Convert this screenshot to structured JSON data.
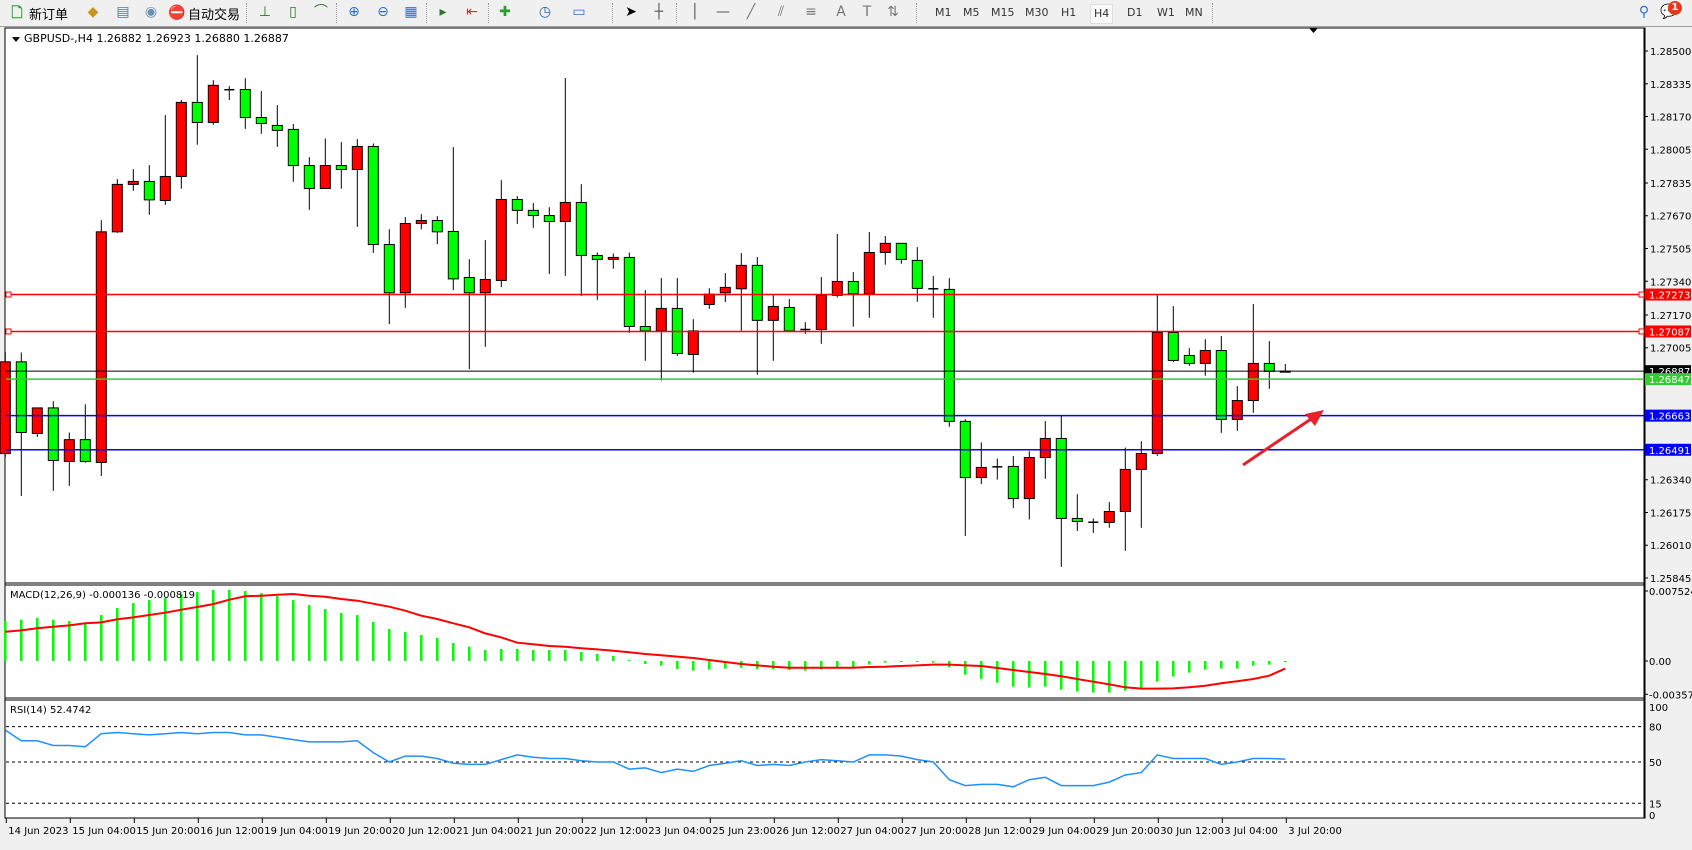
{
  "toolbar": {
    "new_order_label": "新订单",
    "auto_trading_label": "自动交易",
    "icons": [
      "new-order-icon",
      "market-watch-icon",
      "data-window-icon",
      "signals-icon",
      "auto-trading-icon",
      "bar-chart-icon",
      "candlestick-icon",
      "line-chart-icon",
      "zoom-in-icon",
      "zoom-out-icon",
      "tile-windows-icon",
      "autoscroll-icon",
      "chart-shift-icon",
      "indicators-icon",
      "periods-icon",
      "templates-icon",
      "cursor-icon",
      "crosshair-icon",
      "vertical-line-icon",
      "horizontal-line-icon",
      "trendline-icon",
      "equidistant-channel-icon",
      "fibonacci-icon",
      "text-icon",
      "text-label-icon",
      "arrows-icon",
      "search-icon",
      "notifications-icon"
    ],
    "timeframes": [
      "M1",
      "M5",
      "M15",
      "M30",
      "H1",
      "H4",
      "D1",
      "W1",
      "MN"
    ],
    "selected_timeframe": "H4",
    "notification_count": "1"
  },
  "chart": {
    "title": "GBPUSD-,H4  1.26882 1.26923 1.26880 1.26887",
    "symbol": "GBPUSD-",
    "timeframe": "H4",
    "colors": {
      "bull": "#ff0000",
      "bear": "#00ff00",
      "macd_hist": "#00ff00",
      "macd_signal": "#ff0000",
      "rsi": "#1e90ff",
      "arrow": "#e8202a"
    },
    "candles_ohlc": [
      [
        1.26472,
        1.26984,
        1.26455,
        1.26934
      ],
      [
        1.26934,
        1.26981,
        1.26258,
        1.26578
      ],
      [
        1.26573,
        1.26702,
        1.26556,
        1.26702
      ],
      [
        1.26702,
        1.26736,
        1.26284,
        1.26437
      ],
      [
        1.26432,
        1.26578,
        1.26309,
        1.26542
      ],
      [
        1.26542,
        1.2672,
        1.26425,
        1.26432
      ],
      [
        1.26427,
        1.27648,
        1.26359,
        1.27589
      ],
      [
        1.27589,
        1.27855,
        1.27584,
        1.27828
      ],
      [
        1.27828,
        1.27905,
        1.27796,
        1.27843
      ],
      [
        1.27843,
        1.27925,
        1.27675,
        1.2775
      ],
      [
        1.27747,
        1.28177,
        1.27725,
        1.27868
      ],
      [
        1.27868,
        1.28253,
        1.27806,
        1.28241
      ],
      [
        1.28241,
        1.28479,
        1.28028,
        1.2814
      ],
      [
        1.2814,
        1.28353,
        1.28128,
        1.28327
      ],
      [
        1.28305,
        1.28323,
        1.28253,
        1.28305
      ],
      [
        1.28306,
        1.28363,
        1.28108,
        1.28165
      ],
      [
        1.28165,
        1.28298,
        1.28083,
        1.28135
      ],
      [
        1.28125,
        1.28227,
        1.28017,
        1.281
      ],
      [
        1.28105,
        1.28132,
        1.27841,
        1.27923
      ],
      [
        1.27923,
        1.27965,
        1.277,
        1.27807
      ],
      [
        1.27807,
        1.28059,
        1.27807,
        1.27923
      ],
      [
        1.27923,
        1.28041,
        1.27806,
        1.27903
      ],
      [
        1.27903,
        1.28056,
        1.27614,
        1.28019
      ],
      [
        1.28019,
        1.28034,
        1.27483,
        1.27525
      ],
      [
        1.27525,
        1.27602,
        1.27124,
        1.27282
      ],
      [
        1.27282,
        1.27663,
        1.27206,
        1.27631
      ],
      [
        1.27631,
        1.27678,
        1.27602,
        1.27646
      ],
      [
        1.27646,
        1.27668,
        1.27527,
        1.27589
      ],
      [
        1.27591,
        1.28016,
        1.27295,
        1.27352
      ],
      [
        1.27359,
        1.27451,
        1.26897,
        1.27282
      ],
      [
        1.27282,
        1.27547,
        1.2701,
        1.27349
      ],
      [
        1.27344,
        1.27849,
        1.2731,
        1.27752
      ],
      [
        1.27752,
        1.27769,
        1.27629,
        1.27697
      ],
      [
        1.27697,
        1.27734,
        1.27609,
        1.27671
      ],
      [
        1.27671,
        1.27713,
        1.27377,
        1.27641
      ],
      [
        1.27641,
        1.28364,
        1.27367,
        1.27737
      ],
      [
        1.27737,
        1.27829,
        1.27266,
        1.2747
      ],
      [
        1.2747,
        1.27485,
        1.27246,
        1.2745
      ],
      [
        1.2745,
        1.2748,
        1.27403,
        1.2746
      ],
      [
        1.2746,
        1.27485,
        1.2708,
        1.27112
      ],
      [
        1.27112,
        1.27295,
        1.26939,
        1.2709
      ],
      [
        1.2709,
        1.27356,
        1.2684,
        1.27203
      ],
      [
        1.27203,
        1.27356,
        1.26964,
        1.26976
      ],
      [
        1.26971,
        1.27149,
        1.26879,
        1.2709
      ],
      [
        1.27223,
        1.27305,
        1.27201,
        1.27275
      ],
      [
        1.27282,
        1.27381,
        1.27235,
        1.27309
      ],
      [
        1.27302,
        1.27482,
        1.2709,
        1.2742
      ],
      [
        1.2742,
        1.27462,
        1.26869,
        1.27143
      ],
      [
        1.27143,
        1.2727,
        1.26939,
        1.27213
      ],
      [
        1.27208,
        1.2725,
        1.2709,
        1.2709
      ],
      [
        1.27097,
        1.27134,
        1.27075,
        1.27097
      ],
      [
        1.27097,
        1.27361,
        1.27025,
        1.27269
      ],
      [
        1.27269,
        1.27578,
        1.27258,
        1.27339
      ],
      [
        1.27339,
        1.27386,
        1.27111,
        1.27277
      ],
      [
        1.27277,
        1.27588,
        1.27156,
        1.27485
      ],
      [
        1.27485,
        1.27568,
        1.27423,
        1.27531
      ],
      [
        1.27531,
        1.27531,
        1.27428,
        1.2745
      ],
      [
        1.27445,
        1.27512,
        1.27237,
        1.27304
      ],
      [
        1.27302,
        1.27366,
        1.27156,
        1.27302
      ],
      [
        1.27299,
        1.27356,
        1.26607,
        1.26634
      ],
      [
        1.26634,
        1.26645,
        1.26057,
        1.26351
      ],
      [
        1.26351,
        1.26528,
        1.26318,
        1.26402
      ],
      [
        1.26405,
        1.26447,
        1.26341,
        1.26405
      ],
      [
        1.26407,
        1.26459,
        1.26198,
        1.26245
      ],
      [
        1.26245,
        1.26484,
        1.2614,
        1.26452
      ],
      [
        1.26452,
        1.26635,
        1.26345,
        1.26548
      ],
      [
        1.26548,
        1.26662,
        1.25901,
        1.26145
      ],
      [
        1.26145,
        1.26267,
        1.26082,
        1.2613
      ],
      [
        1.26126,
        1.26145,
        1.26072,
        1.26126
      ],
      [
        1.26125,
        1.26227,
        1.26098,
        1.2618
      ],
      [
        1.2618,
        1.26502,
        1.25982,
        1.26392
      ],
      [
        1.26392,
        1.26534,
        1.26098,
        1.26472
      ],
      [
        1.26472,
        1.2727,
        1.2646,
        1.27082
      ],
      [
        1.27082,
        1.27215,
        1.26933,
        1.26941
      ],
      [
        1.26966,
        1.27003,
        1.26914,
        1.26926
      ],
      [
        1.26926,
        1.27048,
        1.26864,
        1.26991
      ],
      [
        1.26991,
        1.27064,
        1.26576,
        1.26644
      ],
      [
        1.26644,
        1.26812,
        1.26586,
        1.26739
      ],
      [
        1.26739,
        1.27225,
        1.26677,
        1.26926
      ],
      [
        1.26926,
        1.27038,
        1.26798,
        1.26886
      ],
      [
        1.26882,
        1.26923,
        1.2688,
        1.26887
      ]
    ],
    "price_range": [
      1.25845,
      1.285
    ],
    "price_ticks": [
      "1.28500",
      "1.28335",
      "1.28170",
      "1.28005",
      "1.27835",
      "1.27670",
      "1.27505",
      "1.27340",
      "1.27170",
      "1.27005",
      "1.26340",
      "1.26175",
      "1.26010",
      "1.25845"
    ],
    "levels": [
      {
        "price": 1.27273,
        "label": "1.27273",
        "color": "#ff0000"
      },
      {
        "price": 1.27087,
        "label": "1.27087",
        "color": "#ff0000"
      },
      {
        "price": 1.26887,
        "label": "1.26887",
        "color": "#000000"
      },
      {
        "price": 1.26847,
        "label": "1.26847",
        "color": "#32cd32"
      },
      {
        "price": 1.26663,
        "label": "1.26663",
        "color": "#0000ff"
      },
      {
        "price": 1.26491,
        "label": "1.26491",
        "color": "#0000ff"
      }
    ],
    "time_labels": [
      "14 Jun 2023",
      "15 Jun 04:00",
      "15 Jun 20:00",
      "16 Jun 12:00",
      "19 Jun 04:00",
      "19 Jun 20:00",
      "20 Jun 12:00",
      "21 Jun 04:00",
      "21 Jun 20:00",
      "22 Jun 12:00",
      "23 Jun 04:00",
      "25 Jun 23:00",
      "26 Jun 12:00",
      "27 Jun 04:00",
      "27 Jun 20:00",
      "28 Jun 12:00",
      "29 Jun 04:00",
      "29 Jun 20:00",
      "30 Jun 12:00",
      "3 Jul 04:00",
      "3 Jul 20:00"
    ]
  },
  "macd": {
    "title": "MACD(12,26,9) -0.000136 -0.000819",
    "ticks": [
      "0.007524",
      "0.00",
      "-0.003577"
    ],
    "range": [
      -0.003577,
      0.007524
    ],
    "histogram": [
      0.0043,
      0.00444,
      0.00465,
      0.00444,
      0.0043,
      0.00401,
      0.00494,
      0.00569,
      0.00623,
      0.00655,
      0.00677,
      0.0072,
      0.00741,
      0.00763,
      0.00763,
      0.00752,
      0.0073,
      0.00698,
      0.00655,
      0.00601,
      0.00558,
      0.00516,
      0.00494,
      0.00419,
      0.00344,
      0.00311,
      0.00279,
      0.00247,
      0.00193,
      0.00154,
      0.00118,
      0.00129,
      0.00129,
      0.00118,
      0.00118,
      0.00118,
      0.00097,
      0.00075,
      0.00054,
      0.00011,
      -0.00032,
      -0.0005,
      -0.00086,
      -0.00104,
      -0.00093,
      -0.00082,
      -0.00072,
      -0.00086,
      -0.0009,
      -0.00097,
      -0.00104,
      -0.00093,
      -0.00068,
      -0.00068,
      -0.00039,
      -0.00018,
      -7e-05,
      -7e-05,
      -0.00018,
      -0.00068,
      -0.00147,
      -0.00193,
      -0.00233,
      -0.00276,
      -0.00286,
      -0.00276,
      -0.00308,
      -0.00329,
      -0.0034,
      -0.0034,
      -0.00319,
      -0.00286,
      -0.00222,
      -0.00168,
      -0.00125,
      -0.00093,
      -0.00082,
      -0.00082,
      -0.0005,
      -0.00039,
      -0.000136
    ],
    "signal": [
      0.00315,
      0.00329,
      0.00351,
      0.00369,
      0.00383,
      0.00405,
      0.00415,
      0.00448,
      0.00469,
      0.00494,
      0.00519,
      0.00551,
      0.0058,
      0.00612,
      0.00659,
      0.00695,
      0.00702,
      0.00712,
      0.0072,
      0.00702,
      0.00691,
      0.00666,
      0.00648,
      0.00616,
      0.00584,
      0.00541,
      0.00487,
      0.00451,
      0.00405,
      0.00362,
      0.00297,
      0.00254,
      0.00197,
      0.00179,
      0.00161,
      0.00154,
      0.00136,
      0.00125,
      0.00111,
      0.00093,
      0.00075,
      0.00061,
      0.00047,
      0.00032,
      0.00011,
      -0.00011,
      -0.00032,
      -0.00047,
      -0.00061,
      -0.00072,
      -0.00072,
      -0.00072,
      -0.00072,
      -0.00072,
      -0.00064,
      -0.00061,
      -0.00054,
      -0.00047,
      -0.00039,
      -0.00039,
      -0.00047,
      -0.00054,
      -0.00075,
      -0.00097,
      -0.00118,
      -0.0014,
      -0.00165,
      -0.00193,
      -0.00222,
      -0.00251,
      -0.00283,
      -0.00297,
      -0.00297,
      -0.00294,
      -0.00283,
      -0.00265,
      -0.0024,
      -0.00218,
      -0.00193,
      -0.00158,
      -0.000819
    ]
  },
  "rsi": {
    "title": "RSI(14) 52.4742",
    "ticks": [
      "100",
      "80",
      "50",
      "15",
      "0"
    ],
    "levels": [
      80,
      50,
      15
    ],
    "values": [
      77,
      68,
      68,
      64,
      64,
      63,
      74,
      75,
      74,
      73,
      74,
      75,
      74,
      75,
      75,
      73,
      73,
      71,
      69,
      67,
      67,
      67,
      68,
      58,
      50,
      55,
      55,
      53,
      49,
      48,
      48,
      52,
      56,
      54,
      53,
      53,
      51,
      50,
      50,
      44,
      45,
      41,
      44,
      42,
      47,
      49,
      51,
      47,
      48,
      47,
      50,
      52,
      51,
      50,
      56,
      56,
      55,
      52,
      50,
      35,
      30,
      31,
      31,
      29,
      35,
      37,
      30,
      30,
      30,
      33,
      39,
      41,
      56,
      53,
      53,
      53,
      48,
      50,
      53,
      53,
      52.4742
    ]
  }
}
